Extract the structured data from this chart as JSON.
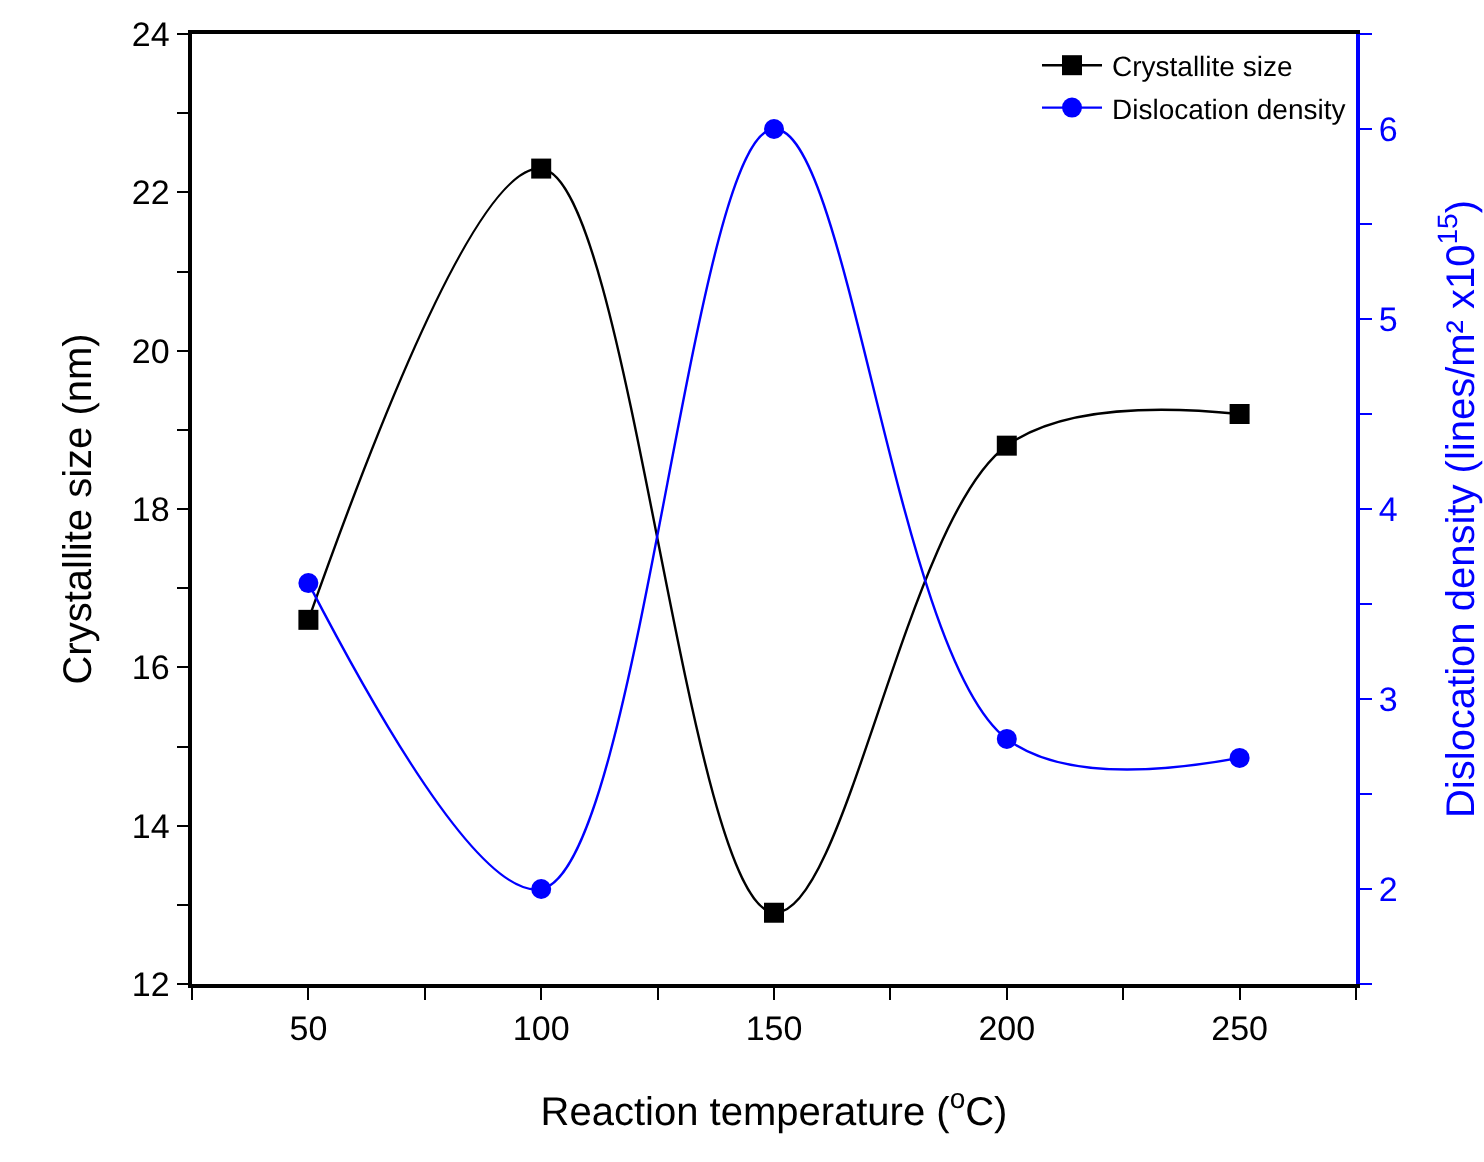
{
  "chart_data": {
    "type": "line",
    "xlabel": "Reaction temperature ($^{o}$C)",
    "ylabel": "Crystallite size (nm)",
    "y2label": "Dislocation density (lines/m² x10$^{15}$)",
    "x": [
      50,
      100,
      150,
      200,
      250
    ],
    "series": [
      {
        "name": "Crystallite size",
        "color": "#000000",
        "marker": "square",
        "values": [
          16.6,
          22.3,
          12.9,
          18.8,
          19.2
        ]
      },
      {
        "name": "Dislocation density",
        "color": "#0000ff",
        "marker": "circle",
        "axis": "y2",
        "values": [
          3.61,
          2.0,
          6.0,
          2.79,
          2.69
        ]
      }
    ],
    "xlim": [
      25,
      275
    ],
    "xticks": [
      {
        "value": 25,
        "label": null
      },
      50,
      {
        "value": 75,
        "label": null
      },
      100,
      {
        "value": 125,
        "label": null
      },
      150,
      {
        "value": 175,
        "label": null
      },
      200,
      {
        "value": 225,
        "label": null
      },
      250,
      {
        "value": 275,
        "label": null
      }
    ],
    "ylim": [
      12,
      24
    ],
    "yticks": [
      12,
      {
        "value": 13,
        "label": null
      },
      14,
      {
        "value": 15,
        "label": null
      },
      16,
      {
        "value": 17,
        "label": null
      },
      18,
      {
        "value": 19,
        "label": null
      },
      20,
      {
        "value": 21,
        "label": null
      },
      22,
      {
        "value": 23,
        "label": null
      },
      24
    ],
    "y2lim": [
      1.5,
      6.5
    ],
    "y2ticks": [
      {
        "value": 1.5,
        "label": null
      },
      2,
      {
        "value": 2.5,
        "label": null
      },
      3,
      {
        "value": 3.5,
        "label": null
      },
      4,
      {
        "value": 4.5,
        "label": null
      },
      5,
      {
        "value": 5.5,
        "label": null
      },
      6,
      {
        "value": 6.5,
        "label": null
      }
    ],
    "legend": "top right",
    "grid": false
  }
}
